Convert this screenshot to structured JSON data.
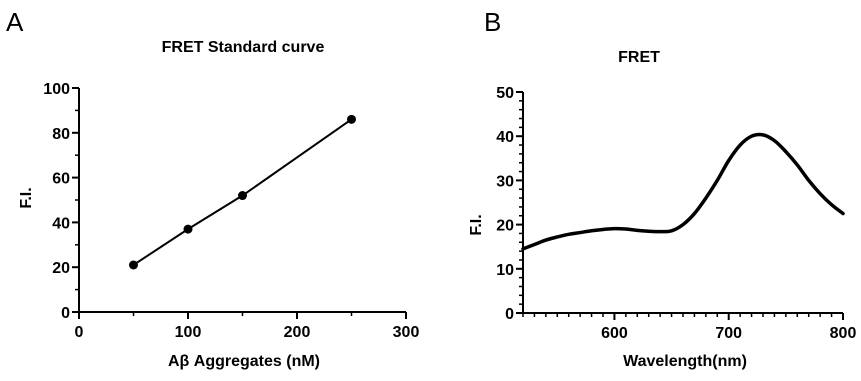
{
  "chart_data": [
    {
      "panel": "A",
      "type": "line",
      "title": "FRET Standard curve",
      "xlabel": "Aβ Aggregates  (nM)",
      "ylabel": "F.I.",
      "xlim": [
        0,
        300
      ],
      "ylim": [
        0,
        100
      ],
      "xticks": [
        0,
        100,
        200,
        300
      ],
      "yticks": [
        0,
        20,
        40,
        60,
        80,
        100
      ],
      "markers": true,
      "series": [
        {
          "x": [
            50,
            100,
            150,
            250
          ],
          "y": [
            21,
            37,
            52,
            86
          ]
        }
      ],
      "grid": false
    },
    {
      "panel": "B",
      "type": "line",
      "title": "FRET",
      "xlabel": "Wavelength(nm)",
      "ylabel": "F.I.",
      "xlim": [
        520,
        800
      ],
      "ylim": [
        0,
        50
      ],
      "xticks": [
        600,
        700,
        800
      ],
      "yticks": [
        0,
        10,
        20,
        30,
        40,
        50
      ],
      "markers": false,
      "series": [
        {
          "x": [
            520,
            530,
            540,
            550,
            560,
            570,
            580,
            590,
            600,
            610,
            620,
            630,
            640,
            650,
            660,
            670,
            680,
            690,
            700,
            710,
            720,
            730,
            740,
            750,
            760,
            770,
            780,
            790,
            800
          ],
          "y": [
            14.5,
            15.5,
            16.5,
            17.2,
            17.8,
            18.2,
            18.6,
            18.9,
            19.1,
            19.0,
            18.7,
            18.5,
            18.4,
            18.6,
            20.0,
            22.5,
            26.0,
            30.0,
            34.5,
            38.0,
            40.0,
            40.3,
            39.0,
            36.5,
            33.5,
            30.0,
            27.0,
            24.5,
            22.5
          ]
        }
      ],
      "grid": false
    }
  ],
  "panels": {
    "a": "A",
    "b": "B"
  }
}
